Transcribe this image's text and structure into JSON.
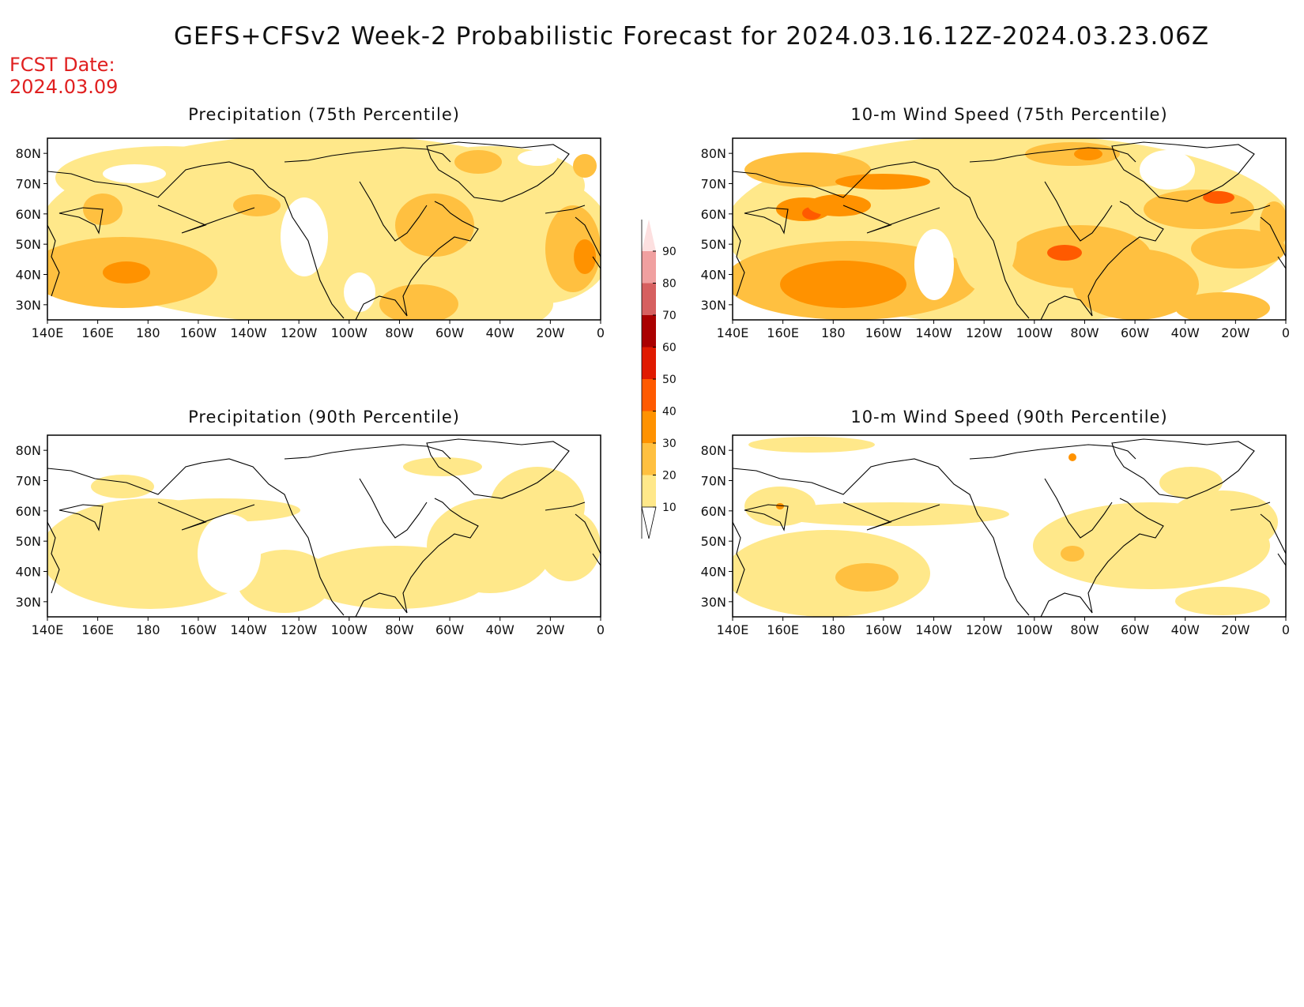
{
  "title": "GEFS+CFSv2 Week-2 Probabilistic Forecast for 2024.03.16.12Z-2024.03.23.06Z",
  "fcst_label": "FCST Date:",
  "fcst_date": "2024.03.09",
  "colorbar": {
    "levels": [
      "10",
      "20",
      "30",
      "40",
      "50",
      "60",
      "70",
      "80",
      "90"
    ],
    "colors": [
      "#fff9c8",
      "#ffe88a",
      "#ffc040",
      "#ff9200",
      "#ff5a00",
      "#e01a00",
      "#aa0000",
      "#d66060",
      "#f0a0a0"
    ]
  },
  "axes": {
    "lat_labels": [
      "80N",
      "70N",
      "60N",
      "50N",
      "40N",
      "30N"
    ],
    "lon_labels": [
      "140E",
      "160E",
      "180",
      "160W",
      "140W",
      "120W",
      "100W",
      "80W",
      "60W",
      "40W",
      "20W",
      "0"
    ]
  },
  "panels": [
    {
      "id": "precip-75",
      "title": "Precipitation (75th Percentile)"
    },
    {
      "id": "wind-75",
      "title": "10-m Wind Speed (75th Percentile)"
    },
    {
      "id": "precip-90",
      "title": "Precipitation (90th Percentile)"
    },
    {
      "id": "wind-90",
      "title": "10-m Wind Speed (90th Percentile)"
    }
  ]
}
